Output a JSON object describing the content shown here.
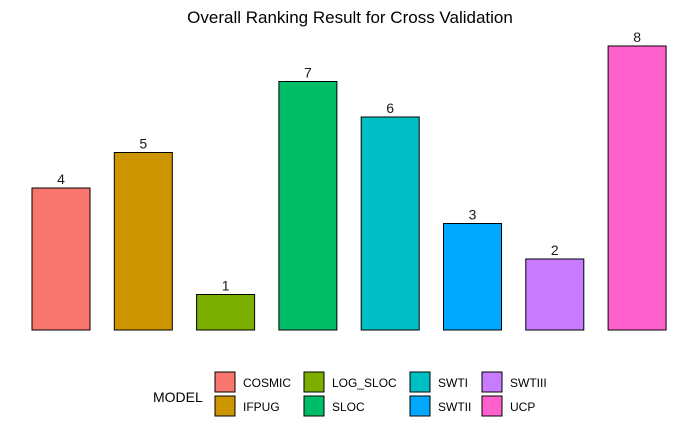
{
  "chart_data": {
    "type": "bar",
    "title": "Overall Ranking Result for Cross Validation",
    "xlabel": "",
    "ylabel": "",
    "ylim": [
      0,
      8
    ],
    "categories": [
      "COSMIC",
      "IFPUG",
      "LOG_SLOC",
      "SLOC",
      "SWTI",
      "SWTII",
      "SWTIII",
      "UCP"
    ],
    "values": [
      4,
      5,
      1,
      7,
      6,
      3,
      2,
      8
    ],
    "colors": [
      "#F8766D",
      "#CD9600",
      "#7CAE00",
      "#00BE67",
      "#00BFC4",
      "#00A9FF",
      "#C77CFF",
      "#FF61CC"
    ],
    "grid": false,
    "legend": {
      "title": "MODEL",
      "placement": "bottom",
      "entries": [
        "COSMIC",
        "IFPUG",
        "LOG_SLOC",
        "SLOC",
        "SWTI",
        "SWTII",
        "SWTIII",
        "UCP"
      ]
    }
  }
}
